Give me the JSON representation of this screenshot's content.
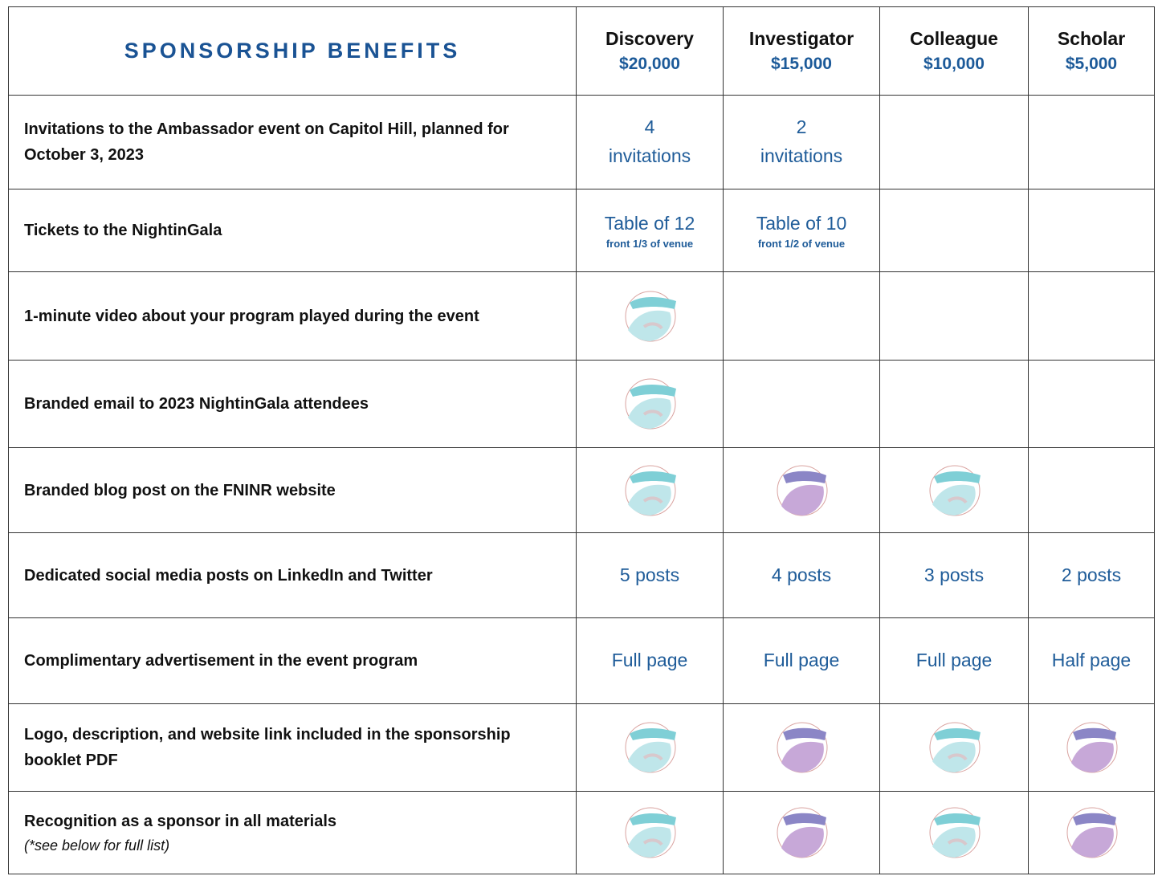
{
  "header": {
    "title": "SPONSORSHIP BENEFITS"
  },
  "tiers": [
    {
      "name": "Discovery",
      "price": "$20,000"
    },
    {
      "name": "Investigator",
      "price": "$15,000"
    },
    {
      "name": "Colleague",
      "price": "$10,000"
    },
    {
      "name": "Scholar",
      "price": "$5,000"
    }
  ],
  "rows": [
    {
      "benefit": "Invitations to the Ambassador event on Capitol Hill, planned for October 3, 2023",
      "cells": [
        "4 invitations",
        "2 invitations",
        null,
        null
      ]
    },
    {
      "benefit": "Tickets to the NightinGala",
      "cells": [
        {
          "text": "Table of 12",
          "sub": "front 1/3 of venue"
        },
        {
          "text": "Table of 10",
          "sub": "front 1/2 of venue"
        },
        null,
        null
      ]
    },
    {
      "benefit": "1-minute video about your program played during the event",
      "cells": [
        null,
        null,
        null,
        null
      ]
    },
    {
      "benefit": "Branded email to 2023 NightinGala attendees",
      "cells": [
        null,
        null,
        null,
        null
      ]
    },
    {
      "benefit": "Branded blog post on the FNINR website",
      "cells": [
        null,
        null,
        null,
        null
      ]
    },
    {
      "benefit": "Dedicated social media posts on LinkedIn and Twitter",
      "cells": [
        "5 posts",
        "4 posts",
        "3 posts",
        "2 posts"
      ]
    },
    {
      "benefit": "Complimentary advertisement in the event program",
      "cells": [
        "Full page",
        "Full page",
        "Full page",
        "Half page"
      ]
    },
    {
      "benefit": "Logo, description, and website link included in the sponsorship booklet PDF",
      "cells": [
        null,
        null,
        null,
        null
      ]
    },
    {
      "benefit": "Recognition as a sponsor in all materials",
      "note": "(*see below for full list)",
      "cells": [
        null,
        null,
        null,
        null
      ]
    }
  ]
}
